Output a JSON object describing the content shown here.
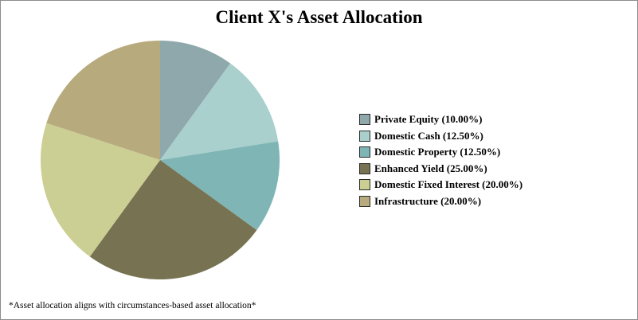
{
  "chart_data": {
    "type": "pie",
    "title": "Client X's Asset Allocation",
    "footnote": "*Asset allocation aligns with circumstances-based asset allocation*",
    "legend_position": "right",
    "slices": [
      {
        "label": "Private Equity (10.00%)",
        "value": 10.0,
        "color": "#8fa8ab"
      },
      {
        "label": "Domestic Cash (12.50%)",
        "value": 12.5,
        "color": "#a9d0cd"
      },
      {
        "label": "Domestic Property (12.50%)",
        "value": 12.5,
        "color": "#7fb5b4"
      },
      {
        "label": "Enhanced Yield (25.00%)",
        "value": 25.0,
        "color": "#777251"
      },
      {
        "label": "Domestic Fixed Interest (20.00%)",
        "value": 20.0,
        "color": "#cccf93"
      },
      {
        "label": "Infrastructure (20.00%)",
        "value": 20.0,
        "color": "#b7ab7d"
      }
    ]
  }
}
